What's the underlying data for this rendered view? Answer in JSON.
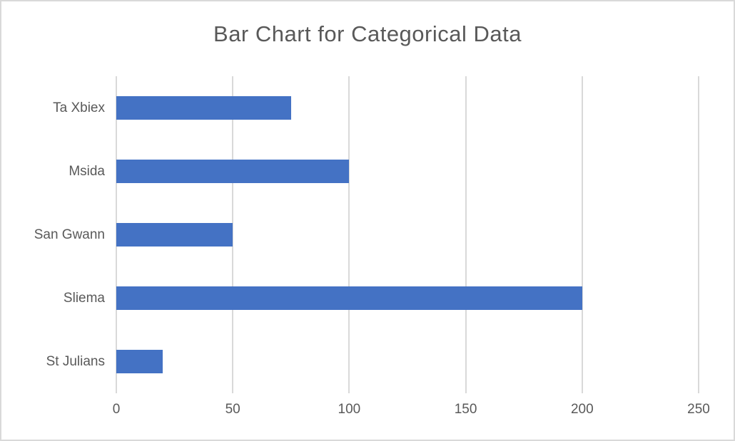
{
  "chart_data": {
    "type": "bar",
    "orientation": "horizontal",
    "title": "Bar Chart for Categorical Data",
    "categories": [
      "Ta Xbiex",
      "Msida",
      "San Gwann",
      "Sliema",
      "St Julians"
    ],
    "values": [
      75,
      100,
      50,
      200,
      20
    ],
    "xlabel": "",
    "ylabel": "",
    "xlim": [
      0,
      250
    ],
    "xticks": [
      0,
      50,
      100,
      150,
      200,
      250
    ],
    "grid": "vertical-only",
    "legend_position": "none",
    "colors": {
      "bar": "#4472C4",
      "gridline": "#D9D9D9",
      "text": "#595959",
      "frame_border": "#D9D9D9",
      "background": "#FFFFFF"
    }
  }
}
